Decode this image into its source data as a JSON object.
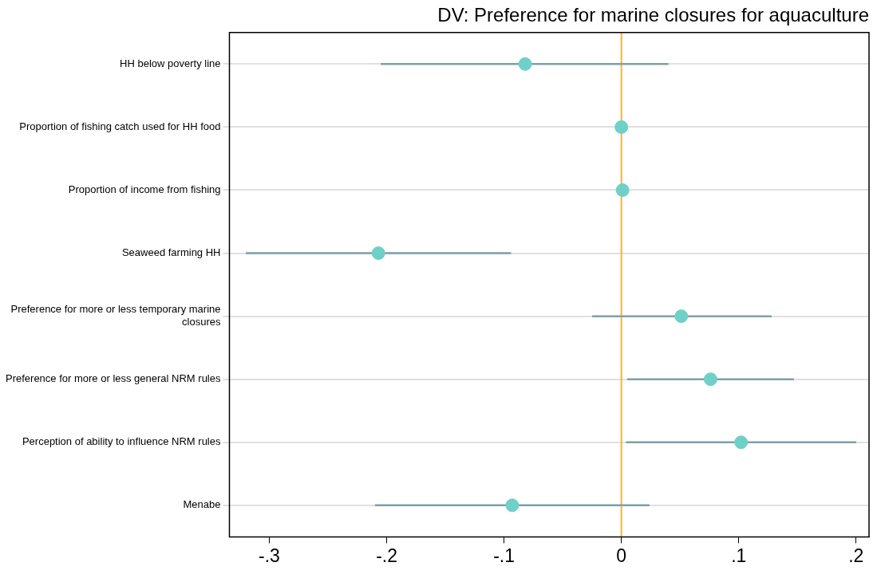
{
  "chart_data": {
    "type": "scatter",
    "orientation": "horizontal",
    "title": "DV: Preference for marine closures for aquaculture",
    "categories": [
      "HH below poverty line",
      "Proportion of fishing catch used for HH food",
      "Proportion of income from fishing",
      "Seaweed farming HH",
      "Preference for more or less temporary marine closures",
      "Preference for more or less general NRM rules",
      "Perception of ability to influence NRM rules",
      "Menabe"
    ],
    "series": [
      {
        "color": "#6fd0c8",
        "values": [
          -0.082,
          0.0,
          0.001,
          -0.207,
          0.051,
          0.076,
          0.102,
          -0.093
        ],
        "errors": [
          [
            -0.205,
            0.04
          ],
          null,
          null,
          [
            -0.32,
            -0.094
          ],
          [
            -0.025,
            0.128
          ],
          [
            0.005,
            0.147
          ],
          [
            0.004,
            0.2
          ],
          [
            -0.21,
            0.024
          ]
        ]
      }
    ],
    "xlim": [
      -0.334,
      0.211
    ],
    "xticks": [
      {
        "value": -0.3,
        "label": "-.3"
      },
      {
        "value": -0.2,
        "label": "-.2"
      },
      {
        "value": -0.1,
        "label": "-.1"
      },
      0,
      {
        "value": 0.1,
        "label": ".1"
      },
      {
        "value": 0.2,
        "label": ".2"
      }
    ],
    "ref_lines": [
      {
        "axis": "x",
        "value": 0,
        "color": "#f2b33a"
      }
    ],
    "grid": "y",
    "marker": "circle",
    "legend": false
  }
}
